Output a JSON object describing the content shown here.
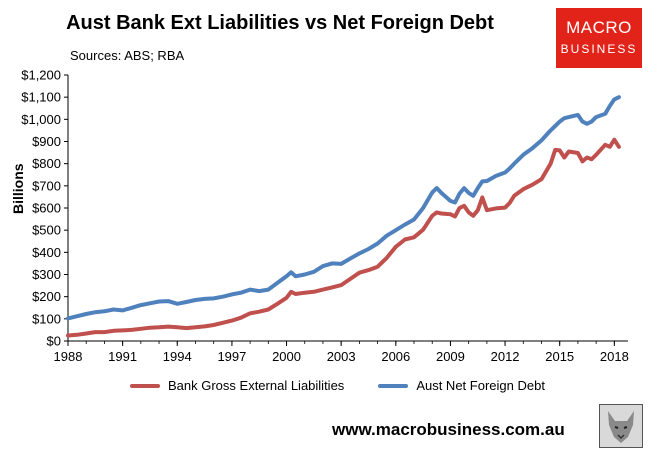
{
  "header": {
    "title": "Aust Bank Ext Liabilities vs Net Foreign Debt",
    "subtitle": "Sources: ABS; RBA"
  },
  "logo": {
    "line1": "MACRO",
    "line2": "BUSINESS"
  },
  "footer": {
    "url": "www.macrobusiness.com.au"
  },
  "chart_data": {
    "type": "line",
    "ylabel": "Billions",
    "xlim": [
      1988,
      2018.75
    ],
    "ylim": [
      0,
      1200
    ],
    "x_ticks": [
      1988,
      1991,
      1994,
      1997,
      2000,
      2003,
      2006,
      2009,
      2012,
      2015,
      2018
    ],
    "x_tick_labels": [
      "1988",
      "1991",
      "1994",
      "1997",
      "2000",
      "2003",
      "2006",
      "2009",
      "2012",
      "2015",
      "2018"
    ],
    "y_ticks": [
      0,
      100,
      200,
      300,
      400,
      500,
      600,
      700,
      800,
      900,
      1000,
      1100,
      1200
    ],
    "y_tick_labels": [
      "$0",
      "$100",
      "$200",
      "$300",
      "$400",
      "$500",
      "$600",
      "$700",
      "$800",
      "$900",
      "$1,000",
      "$1,100",
      "$1,200"
    ],
    "legend_position": "bottom",
    "series": [
      {
        "name": "Bank Gross External Liabilities",
        "color": "#c0504d",
        "points": [
          [
            1988.0,
            25
          ],
          [
            1988.5,
            28
          ],
          [
            1989.0,
            34
          ],
          [
            1989.5,
            40
          ],
          [
            1990.0,
            40
          ],
          [
            1990.5,
            46
          ],
          [
            1991.0,
            48
          ],
          [
            1991.5,
            50
          ],
          [
            1992.0,
            55
          ],
          [
            1992.5,
            60
          ],
          [
            1993.0,
            62
          ],
          [
            1993.5,
            65
          ],
          [
            1994.0,
            62
          ],
          [
            1994.5,
            58
          ],
          [
            1995.0,
            62
          ],
          [
            1995.5,
            66
          ],
          [
            1996.0,
            72
          ],
          [
            1996.5,
            82
          ],
          [
            1997.0,
            92
          ],
          [
            1997.5,
            105
          ],
          [
            1998.0,
            125
          ],
          [
            1998.5,
            132
          ],
          [
            1999.0,
            142
          ],
          [
            1999.5,
            168
          ],
          [
            2000.0,
            195
          ],
          [
            2000.25,
            222
          ],
          [
            2000.5,
            212
          ],
          [
            2001.0,
            218
          ],
          [
            2001.5,
            222
          ],
          [
            2002.0,
            232
          ],
          [
            2002.5,
            242
          ],
          [
            2003.0,
            252
          ],
          [
            2003.5,
            280
          ],
          [
            2004.0,
            308
          ],
          [
            2004.5,
            320
          ],
          [
            2005.0,
            335
          ],
          [
            2005.5,
            375
          ],
          [
            2006.0,
            425
          ],
          [
            2006.5,
            458
          ],
          [
            2007.0,
            468
          ],
          [
            2007.5,
            502
          ],
          [
            2008.0,
            565
          ],
          [
            2008.25,
            580
          ],
          [
            2008.5,
            575
          ],
          [
            2009.0,
            572
          ],
          [
            2009.25,
            562
          ],
          [
            2009.5,
            600
          ],
          [
            2009.75,
            610
          ],
          [
            2010.0,
            580
          ],
          [
            2010.25,
            565
          ],
          [
            2010.5,
            590
          ],
          [
            2010.75,
            648
          ],
          [
            2011.0,
            590
          ],
          [
            2011.5,
            598
          ],
          [
            2012.0,
            602
          ],
          [
            2012.25,
            622
          ],
          [
            2012.5,
            655
          ],
          [
            2013.0,
            685
          ],
          [
            2013.5,
            705
          ],
          [
            2014.0,
            730
          ],
          [
            2014.5,
            800
          ],
          [
            2014.75,
            862
          ],
          [
            2015.0,
            860
          ],
          [
            2015.25,
            828
          ],
          [
            2015.5,
            855
          ],
          [
            2016.0,
            848
          ],
          [
            2016.25,
            810
          ],
          [
            2016.5,
            828
          ],
          [
            2016.75,
            820
          ],
          [
            2017.0,
            840
          ],
          [
            2017.5,
            885
          ],
          [
            2017.75,
            876
          ],
          [
            2018.0,
            908
          ],
          [
            2018.25,
            876
          ]
        ]
      },
      {
        "name": "Aust Net Foreign Debt",
        "color": "#4f81bd",
        "points": [
          [
            1988.0,
            102
          ],
          [
            1988.5,
            112
          ],
          [
            1989.0,
            122
          ],
          [
            1989.5,
            130
          ],
          [
            1990.0,
            134
          ],
          [
            1990.5,
            142
          ],
          [
            1991.0,
            138
          ],
          [
            1991.5,
            150
          ],
          [
            1992.0,
            162
          ],
          [
            1992.5,
            170
          ],
          [
            1993.0,
            178
          ],
          [
            1993.5,
            180
          ],
          [
            1994.0,
            168
          ],
          [
            1994.5,
            176
          ],
          [
            1995.0,
            185
          ],
          [
            1995.5,
            190
          ],
          [
            1996.0,
            192
          ],
          [
            1996.5,
            200
          ],
          [
            1997.0,
            210
          ],
          [
            1997.5,
            218
          ],
          [
            1998.0,
            232
          ],
          [
            1998.5,
            225
          ],
          [
            1999.0,
            232
          ],
          [
            1999.5,
            262
          ],
          [
            2000.0,
            292
          ],
          [
            2000.25,
            310
          ],
          [
            2000.5,
            292
          ],
          [
            2001.0,
            300
          ],
          [
            2001.5,
            312
          ],
          [
            2002.0,
            338
          ],
          [
            2002.5,
            350
          ],
          [
            2003.0,
            348
          ],
          [
            2003.5,
            372
          ],
          [
            2004.0,
            395
          ],
          [
            2004.5,
            415
          ],
          [
            2005.0,
            440
          ],
          [
            2005.5,
            475
          ],
          [
            2006.0,
            500
          ],
          [
            2006.5,
            525
          ],
          [
            2007.0,
            548
          ],
          [
            2007.5,
            600
          ],
          [
            2008.0,
            670
          ],
          [
            2008.25,
            690
          ],
          [
            2008.5,
            668
          ],
          [
            2009.0,
            632
          ],
          [
            2009.25,
            625
          ],
          [
            2009.5,
            665
          ],
          [
            2009.75,
            690
          ],
          [
            2010.0,
            668
          ],
          [
            2010.25,
            655
          ],
          [
            2010.5,
            690
          ],
          [
            2010.75,
            720
          ],
          [
            2011.0,
            722
          ],
          [
            2011.5,
            745
          ],
          [
            2012.0,
            760
          ],
          [
            2012.25,
            778
          ],
          [
            2012.5,
            800
          ],
          [
            2013.0,
            840
          ],
          [
            2013.5,
            870
          ],
          [
            2014.0,
            905
          ],
          [
            2014.5,
            950
          ],
          [
            2014.75,
            970
          ],
          [
            2015.0,
            990
          ],
          [
            2015.25,
            1005
          ],
          [
            2015.5,
            1010
          ],
          [
            2016.0,
            1020
          ],
          [
            2016.25,
            990
          ],
          [
            2016.5,
            980
          ],
          [
            2016.75,
            990
          ],
          [
            2017.0,
            1010
          ],
          [
            2017.5,
            1025
          ],
          [
            2017.75,
            1060
          ],
          [
            2018.0,
            1090
          ],
          [
            2018.25,
            1100
          ]
        ]
      }
    ]
  }
}
